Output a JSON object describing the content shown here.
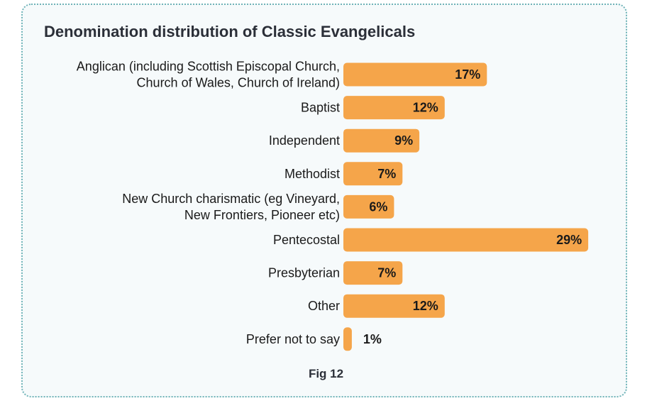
{
  "title": "Denomination distribution of Classic Evangelicals",
  "caption": "Fig 12",
  "colors": {
    "bar": "#f5a54a",
    "text": "#1a1a1a",
    "frame": "#6fb3b8",
    "background": "#f6fafb"
  },
  "chart_data": {
    "type": "bar",
    "orientation": "horizontal",
    "title": "Denomination distribution of Classic Evangelicals",
    "xlabel": "",
    "ylabel": "",
    "categories": [
      [
        "Anglican (including Scottish Episcopal Church,",
        "Church of Wales, Church of Ireland)"
      ],
      [
        "Baptist"
      ],
      [
        "Independent"
      ],
      [
        "Methodist"
      ],
      [
        "New Church charismatic (eg Vineyard,",
        "New Frontiers, Pioneer etc)"
      ],
      [
        "Pentecostal"
      ],
      [
        "Presbyterian"
      ],
      [
        "Other"
      ],
      [
        "Prefer not to say"
      ]
    ],
    "values": [
      17,
      12,
      9,
      7,
      6,
      29,
      7,
      12,
      1
    ],
    "value_labels": [
      "17%",
      "12%",
      "9%",
      "7%",
      "6%",
      "29%",
      "7%",
      "12%",
      "1%"
    ],
    "unit": "%",
    "grid": false,
    "legend": "none"
  }
}
